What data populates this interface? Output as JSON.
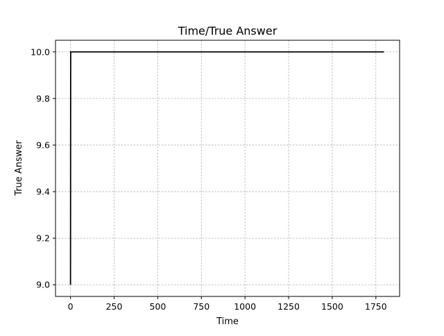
{
  "chart_data": {
    "type": "line",
    "title": "Time/True Answer",
    "xlabel": "Time",
    "ylabel": "True Answer",
    "xlim": [
      -86,
      1886
    ],
    "ylim": [
      8.95,
      10.05
    ],
    "xticks": [
      0,
      250,
      500,
      750,
      1000,
      1250,
      1500,
      1750
    ],
    "xtick_labels": [
      "0",
      "250",
      "500",
      "750",
      "1000",
      "1250",
      "1500",
      "1750"
    ],
    "yticks": [
      9.0,
      9.2,
      9.4,
      9.6,
      9.8,
      10.0
    ],
    "ytick_labels": [
      "9.0",
      "9.2",
      "9.4",
      "9.6",
      "9.8",
      "10.0"
    ],
    "grid": true,
    "series": [
      {
        "color": "#000000",
        "x": [
          0,
          1,
          1796
        ],
        "y": [
          9.0,
          10.0,
          10.0
        ]
      }
    ]
  }
}
